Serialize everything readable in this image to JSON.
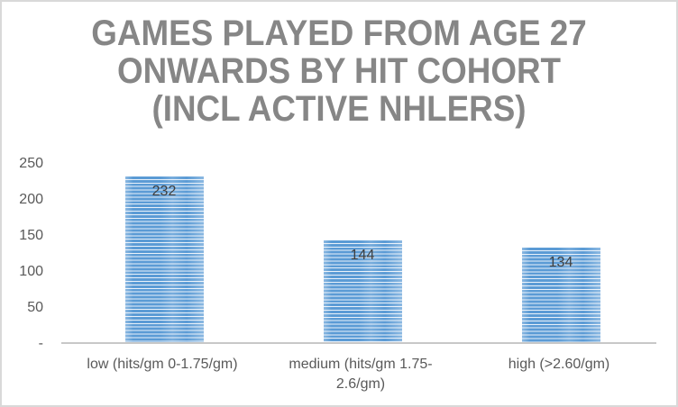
{
  "title": {
    "lines": [
      "GAMES PLAYED FROM AGE 27",
      "ONWARDS BY HIT COHORT",
      "(INCL ACTIVE NHLERS)"
    ]
  },
  "chart_data": {
    "type": "bar",
    "title": "GAMES PLAYED FROM AGE 27 ONWARDS BY HIT COHORT (INCL ACTIVE NHLERS)",
    "categories": [
      "low (hits/gm 0-1.75/gm)",
      "medium (hits/gm 1.75-2.6/gm)",
      "high (>2.60/gm)"
    ],
    "values": [
      232,
      144,
      134
    ],
    "data_labels": [
      "232",
      "144",
      "134"
    ],
    "xlabel": "",
    "ylabel": "",
    "ylim": [
      0,
      250
    ],
    "y_axis": {
      "ticks": [
        {
          "label": "250",
          "value": 250
        },
        {
          "label": "200",
          "value": 200
        },
        {
          "label": "150",
          "value": 150
        },
        {
          "label": "100",
          "value": 100
        },
        {
          "label": "50",
          "value": 50
        },
        {
          "label": "-",
          "value": 0
        }
      ]
    },
    "grid": false,
    "legend": "none",
    "colors": {
      "bar_fill": "#5B9BD5",
      "bar_stripe": "#E9F1FA",
      "title_text": "#868686",
      "axis_label_text": "#595959",
      "data_label_text": "#404040",
      "axis_line": "#C8C8C8",
      "chart_border": "#D9D9D9"
    }
  }
}
